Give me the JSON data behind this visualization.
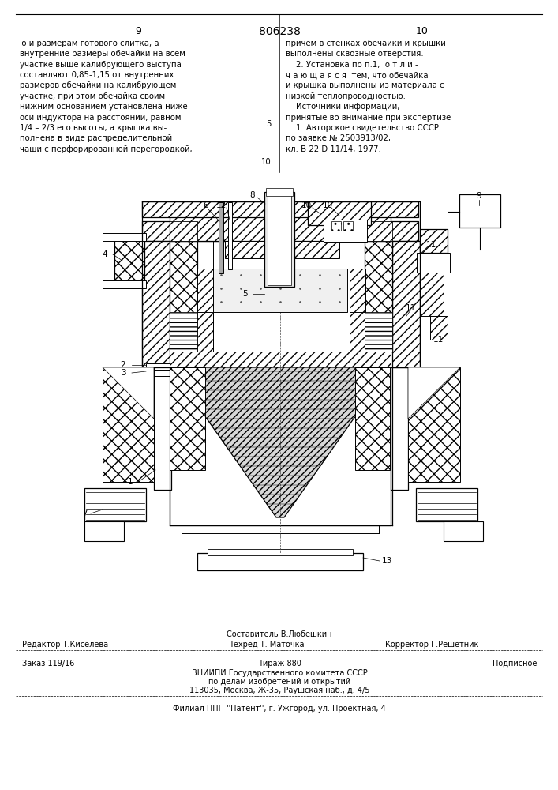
{
  "page_number_left": "9",
  "page_number_center": "806238",
  "page_number_right": "10",
  "left_text": "ю и размерам готового слитка, а\nвнутренние размеры обечайки на всем\nучастке выше калибрующего выступа\nсоставляют 0,85-1,15 от внутренних\nразмеров обечайки на калибрующем\nучастке, при этом обечайка своим\nнижним основанием установлена ниже\nоси индуктора на расстоянии, равном\n1/4 – 2/3 его высоты, а крышка вы-\nполнена в виде распределительной\nчаши с перфорированной перегородкой,",
  "right_text": "причем в стенках обечайки и крышки\nвыполнены сквозные отверстия.\n    2. Установка по п.1,  о т л и -\nч а ю щ а я с я  тем, что обечайка\nи крышка выполнены из материала с\nнизкой теплопроводностью.\n    Источники информации,\nпринятые во внимание при экспертизе\n    1. Авторское свидетельство СССР\nпо заявке № 2503913/02,\nкл. В 22 D 11/14, 1977.",
  "margin_num_5": "5",
  "margin_num_10": "10",
  "footer_composer": "Составитель В.Любешкин",
  "footer_editor": "Редактор Т.Киселева",
  "footer_tech": "Техред Т. Маточка",
  "footer_corrector": "Корректор Г.Решетник",
  "footer_order": "Заказ 119/16",
  "footer_tirazh": "Тираж 880",
  "footer_podpisnoe": "Подписное",
  "footer_vniipи": "ВНИИПИ Государственного комитета СССР",
  "footer_po_delam": "по делам изобретений и открытий",
  "footer_address": "113035, Москва, Ж-35, Раушская наб., д. 4/5",
  "footer_filial": "Филиал ППП ''Патент'', г. Ужгород, ул. Проектная, 4",
  "bg_color": "#ffffff",
  "text_color": "#000000",
  "line_color": "#000000"
}
